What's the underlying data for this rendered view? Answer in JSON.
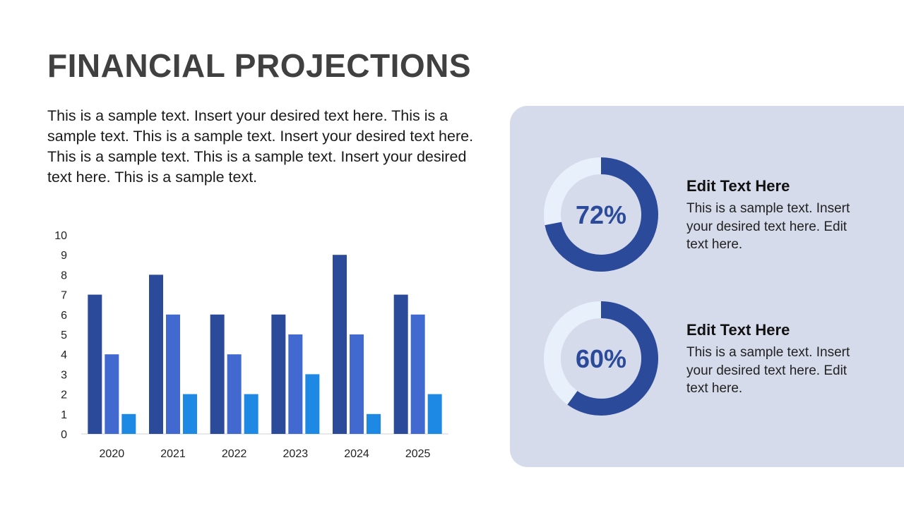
{
  "title": "FINANCIAL PROJECTIONS",
  "body": "This is a sample text. Insert your desired text here. This is a sample text. This is a sample text. Insert your desired text here. This is a sample text. This is a sample text. Insert your desired text here. This is a sample text.",
  "chart_data": [
    {
      "type": "bar",
      "categories": [
        "2020",
        "2021",
        "2022",
        "2023",
        "2024",
        "2025"
      ],
      "series": [
        {
          "color": "#2c4a9a",
          "values": [
            7,
            8,
            6,
            6,
            9,
            7
          ]
        },
        {
          "color": "#4169cf",
          "values": [
            4,
            6,
            4,
            5,
            5,
            6
          ]
        },
        {
          "color": "#1e88e5",
          "values": [
            1,
            2,
            2,
            3,
            1,
            2
          ]
        }
      ],
      "ylim": [
        0,
        10
      ],
      "yticks": [
        0,
        1,
        2,
        3,
        4,
        5,
        6,
        7,
        8,
        9,
        10
      ]
    },
    {
      "type": "donut",
      "values": [
        72
      ],
      "value_labels": [
        "72%"
      ],
      "color": "#2c4a9a",
      "track_color": "#e8f1fb",
      "heading": "Edit Text Here",
      "text": "This is a sample text. Insert your desired text here. Edit text here."
    },
    {
      "type": "donut",
      "values": [
        60
      ],
      "value_labels": [
        "60%"
      ],
      "color": "#2c4a9a",
      "track_color": "#e8f1fb",
      "heading": "Edit Text Here",
      "text": "This is a sample text. Insert your desired text here. Edit text here."
    }
  ]
}
